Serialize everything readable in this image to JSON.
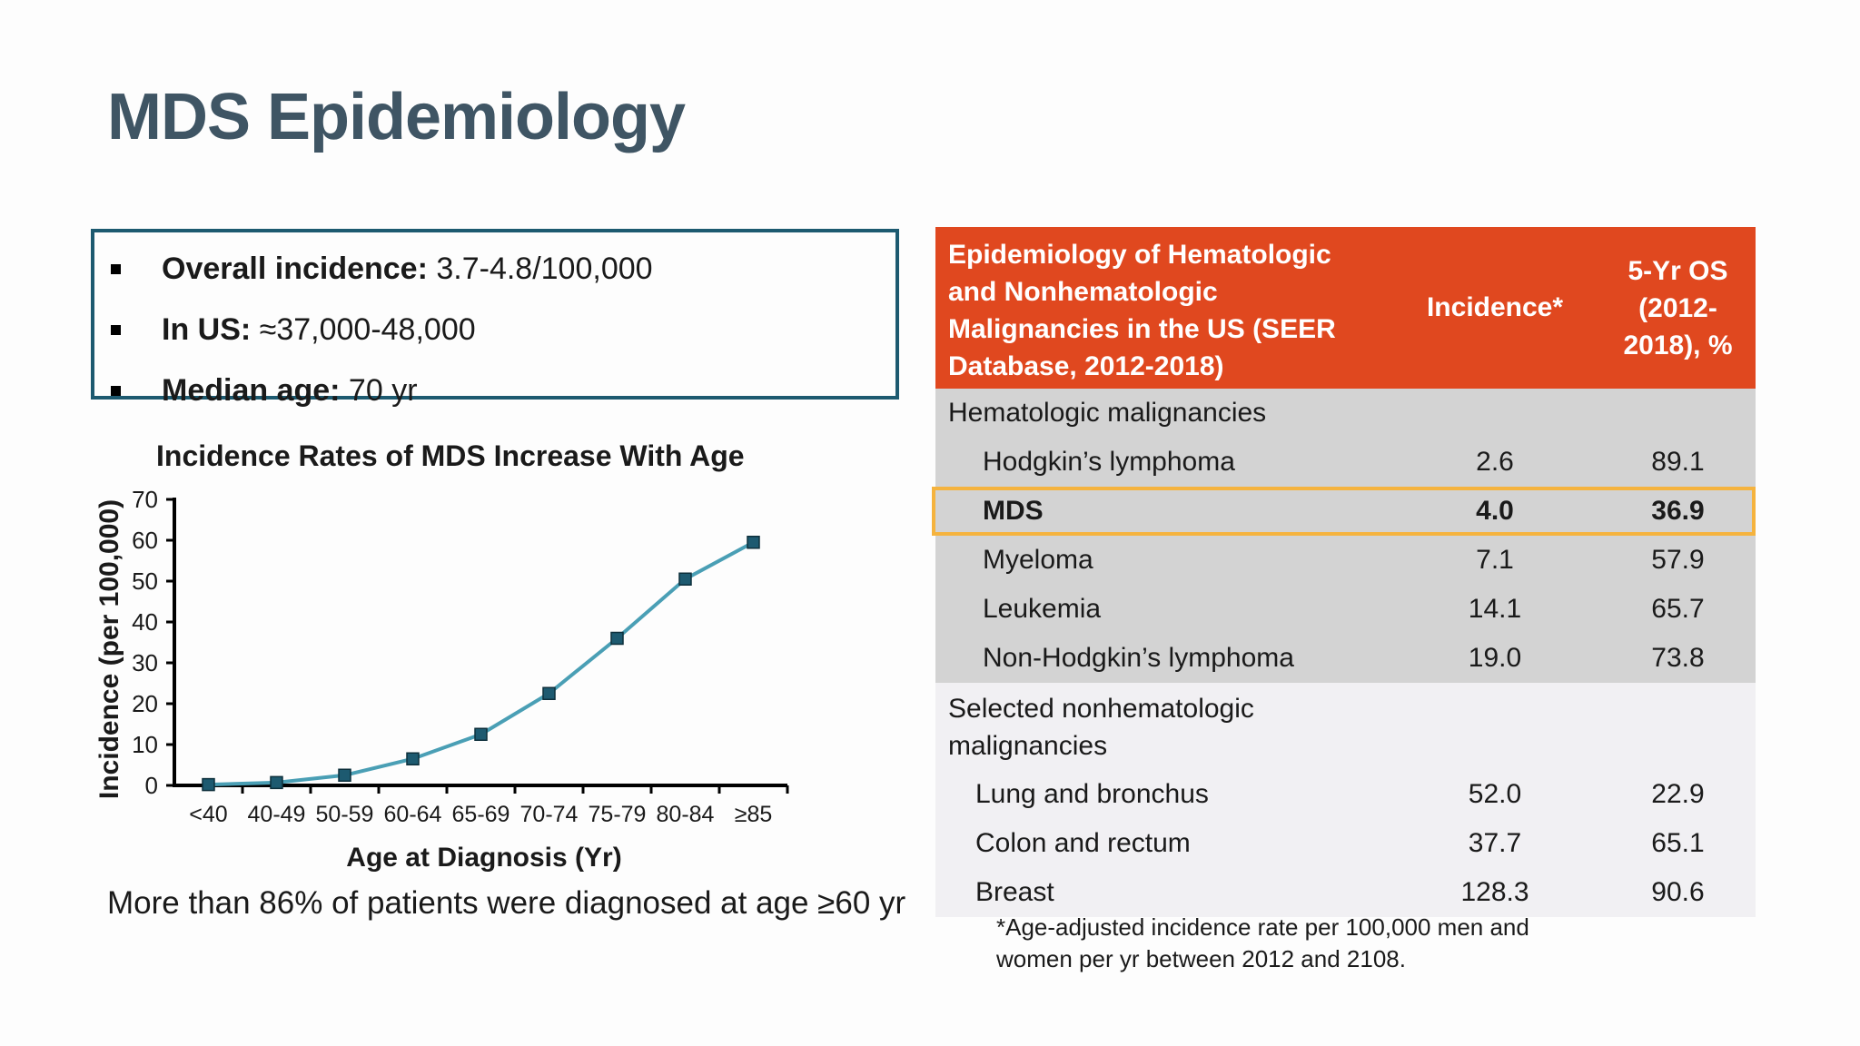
{
  "title": "MDS Epidemiology",
  "bullets": [
    {
      "label": "Overall incidence:",
      "value": " 3.7-4.8/100,000"
    },
    {
      "label": "In US:",
      "value": " ≈37,000-48,000"
    },
    {
      "label": "Median age:",
      "value": " 70 yr"
    }
  ],
  "chart_data": {
    "type": "line",
    "title": "Incidence Rates of MDS Increase With Age",
    "xlabel": "Age at Diagnosis (Yr)",
    "ylabel": "Incidence (per 100,000)",
    "categories": [
      "<40",
      "40-49",
      "50-59",
      "60-64",
      "65-69",
      "70-74",
      "75-79",
      "80-84",
      "≥85"
    ],
    "series": [
      {
        "values": [
          0.2,
          0.7,
          2.5,
          6.5,
          12.5,
          22.5,
          36,
          50.5,
          59.5
        ]
      }
    ],
    "ylim": [
      0,
      70
    ],
    "yticks": [
      0,
      10,
      20,
      30,
      40,
      50,
      60,
      70
    ],
    "grid": false,
    "line_color": "#4a9fb5",
    "marker_color": "#1d5a70"
  },
  "chart_note": "More than 86% of patients were diagnosed at age ≥60 yr",
  "table": {
    "header": {
      "title": "Epidemiology of Hematologic and Nonhematologic Malignancies in the US (SEER Database, 2012-2018)",
      "incidence": "Incidence*",
      "os": "5-Yr OS (2012-2018), %"
    },
    "hematologic_label": "Hematologic malignancies",
    "hematologic_rows": [
      {
        "name": "Hodgkin’s lymphoma",
        "incidence": "2.6",
        "os": "89.1"
      },
      {
        "name": "MDS",
        "incidence": "4.0",
        "os": "36.9"
      },
      {
        "name": "Myeloma",
        "incidence": "7.1",
        "os": "57.9"
      },
      {
        "name": "Leukemia",
        "incidence": "14.1",
        "os": "65.7"
      },
      {
        "name": "Non-Hodgkin’s lymphoma",
        "incidence": "19.0",
        "os": "73.8"
      }
    ],
    "nonhematologic_label": "Selected nonhematologic malignancies",
    "nonhematologic_rows": [
      {
        "name": "Lung and bronchus",
        "incidence": "52.0",
        "os": "22.9"
      },
      {
        "name": "Colon and rectum",
        "incidence": "37.7",
        "os": "65.1"
      },
      {
        "name": "Breast",
        "incidence": "128.3",
        "os": "90.6"
      }
    ],
    "highlight_color": "#f5b33e",
    "header_color": "#e0481f"
  },
  "footnote": "*Age-adjusted incidence rate per 100,000 men and women per yr between 2012 and 2108."
}
